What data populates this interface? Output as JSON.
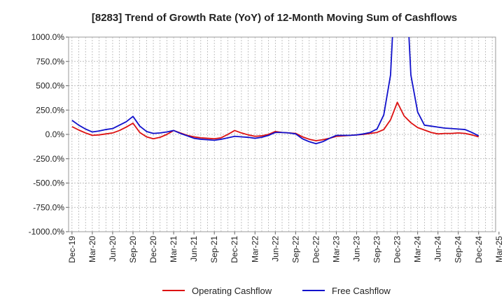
{
  "chart_data": {
    "type": "line",
    "title": "[8283]  Trend of Growth Rate (YoY) of 12-Month Moving Sum of Cashflows",
    "xlabel": "",
    "ylabel": "",
    "ylim": [
      -1000,
      1000
    ],
    "y_ticks": [
      -1000,
      -750,
      -500,
      -250,
      0,
      250,
      500,
      750,
      1000
    ],
    "y_tick_labels": [
      "-1000.0%",
      "-750.0%",
      "-500.0%",
      "-250.0%",
      "0.0%",
      "250.0%",
      "500.0%",
      "750.0%",
      "1000.0%"
    ],
    "x_tick_labels": [
      "Dec-19",
      "Mar-20",
      "Jun-20",
      "Sep-20",
      "Dec-20",
      "Mar-21",
      "Jun-21",
      "Sep-21",
      "Dec-21",
      "Mar-22",
      "Jun-22",
      "Sep-22",
      "Dec-22",
      "Mar-23",
      "Jun-23",
      "Sep-23",
      "Dec-23",
      "Mar-24",
      "Jun-24",
      "Sep-24",
      "Dec-24",
      "Mar-25"
    ],
    "grid": true,
    "legend_position": "bottom",
    "x": [
      "Dec-19",
      "Jan-20",
      "Feb-20",
      "Mar-20",
      "Apr-20",
      "May-20",
      "Jun-20",
      "Jul-20",
      "Aug-20",
      "Sep-20",
      "Oct-20",
      "Nov-20",
      "Dec-20",
      "Jan-21",
      "Feb-21",
      "Mar-21",
      "Apr-21",
      "May-21",
      "Jun-21",
      "Jul-21",
      "Aug-21",
      "Sep-21",
      "Oct-21",
      "Nov-21",
      "Dec-21",
      "Jan-22",
      "Feb-22",
      "Mar-22",
      "Apr-22",
      "May-22",
      "Jun-22",
      "Jul-22",
      "Aug-22",
      "Sep-22",
      "Oct-22",
      "Nov-22",
      "Dec-22",
      "Jan-23",
      "Feb-23",
      "Mar-23",
      "Apr-23",
      "May-23",
      "Jun-23",
      "Jul-23",
      "Aug-23",
      "Sep-23",
      "Oct-23",
      "Nov-23",
      "Dec-23",
      "Jan-24",
      "Feb-24",
      "Mar-24",
      "Apr-24",
      "May-24",
      "Jun-24",
      "Jul-24",
      "Aug-24",
      "Sep-24",
      "Oct-24",
      "Nov-24",
      "Dec-24"
    ],
    "series": [
      {
        "name": "Operating Cashflow",
        "color": "#dd1111",
        "values": [
          80,
          45,
          15,
          -10,
          -5,
          5,
          15,
          40,
          75,
          115,
          20,
          -25,
          -45,
          -30,
          0,
          40,
          15,
          -10,
          -25,
          -35,
          -40,
          -45,
          -35,
          0,
          40,
          15,
          -5,
          -20,
          -15,
          0,
          30,
          20,
          15,
          10,
          -25,
          -50,
          -65,
          -55,
          -40,
          -20,
          -15,
          -10,
          -5,
          0,
          10,
          20,
          50,
          150,
          330,
          190,
          120,
          70,
          45,
          20,
          5,
          10,
          10,
          15,
          10,
          -5,
          -25
        ]
      },
      {
        "name": "Free Cashflow",
        "color": "#1111cc",
        "values": [
          145,
          95,
          55,
          25,
          35,
          50,
          60,
          95,
          130,
          185,
          85,
          30,
          10,
          15,
          25,
          40,
          10,
          -15,
          -40,
          -50,
          -55,
          -60,
          -50,
          -35,
          -20,
          -25,
          -30,
          -40,
          -30,
          -10,
          20,
          20,
          15,
          5,
          -45,
          -75,
          -95,
          -75,
          -40,
          -10,
          -10,
          -10,
          -5,
          5,
          20,
          55,
          200,
          610,
          2000,
          2000,
          610,
          230,
          95,
          85,
          75,
          65,
          60,
          55,
          50,
          20,
          -15
        ]
      }
    ]
  }
}
